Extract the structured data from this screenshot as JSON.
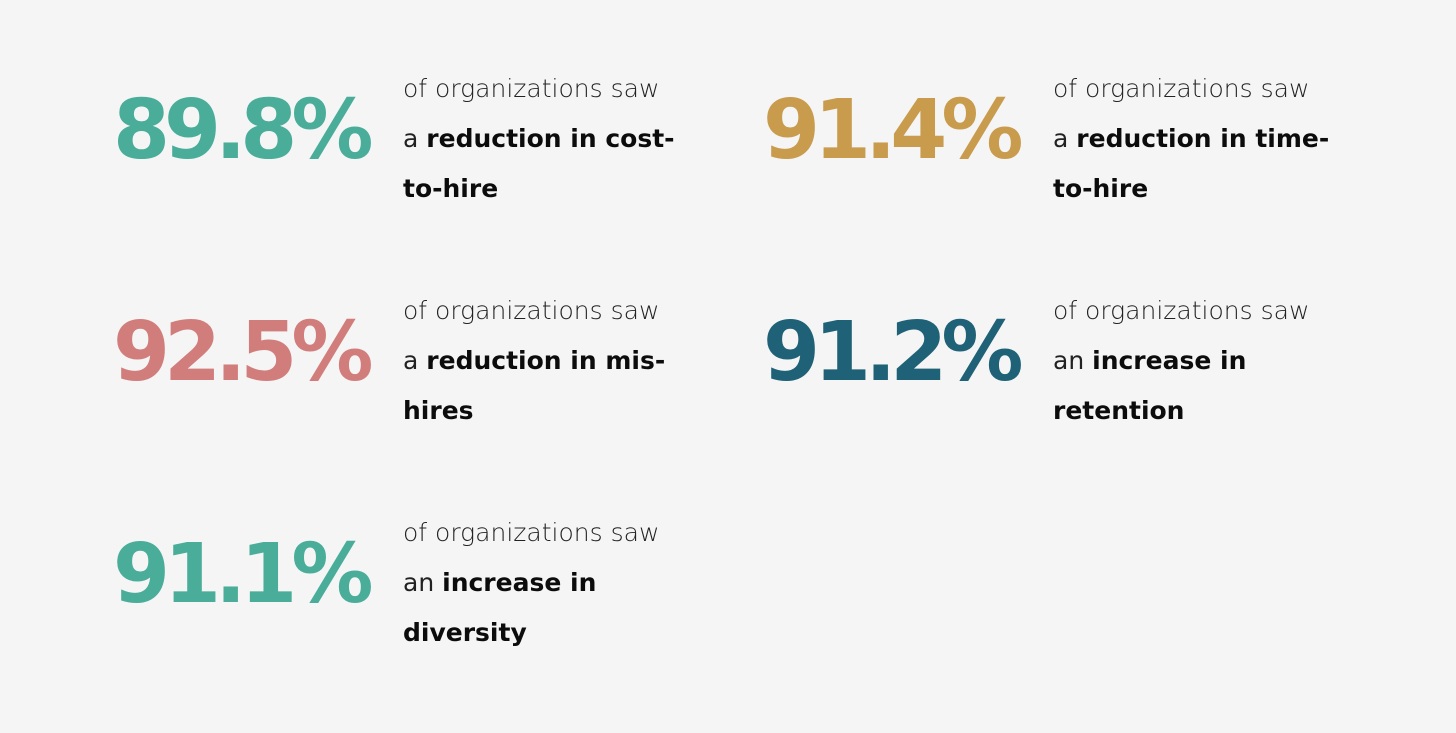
{
  "colors": {
    "background": "#f4f5f4",
    "teal": "#49ad99",
    "gold": "#c89b4d",
    "rose": "#d17d7c",
    "navy": "#1f6176"
  },
  "stats": [
    {
      "value": "89.8%",
      "color": "#49ad99",
      "lead": "of organizations saw",
      "article": "a ",
      "bold_1": "reduction in cost-",
      "bold_2": "to-hire"
    },
    {
      "value": "91.4%",
      "color": "#c89b4d",
      "lead": "of organizations saw",
      "article": "a ",
      "bold_1": "reduction in time-",
      "bold_2": "to-hire"
    },
    {
      "value": "92.5%",
      "color": "#d17d7c",
      "lead": "of organizations saw",
      "article": "a ",
      "bold_1": "reduction in mis-",
      "bold_2": "hires"
    },
    {
      "value": "91.2%",
      "color": "#1f6176",
      "lead": "of organizations saw",
      "article": "an ",
      "bold_1": "increase in",
      "bold_2": "retention"
    },
    {
      "value": "91.1%",
      "color": "#49ad99",
      "lead": "of organizations saw",
      "article": "an ",
      "bold_1": "increase in",
      "bold_2": "diversity"
    }
  ]
}
